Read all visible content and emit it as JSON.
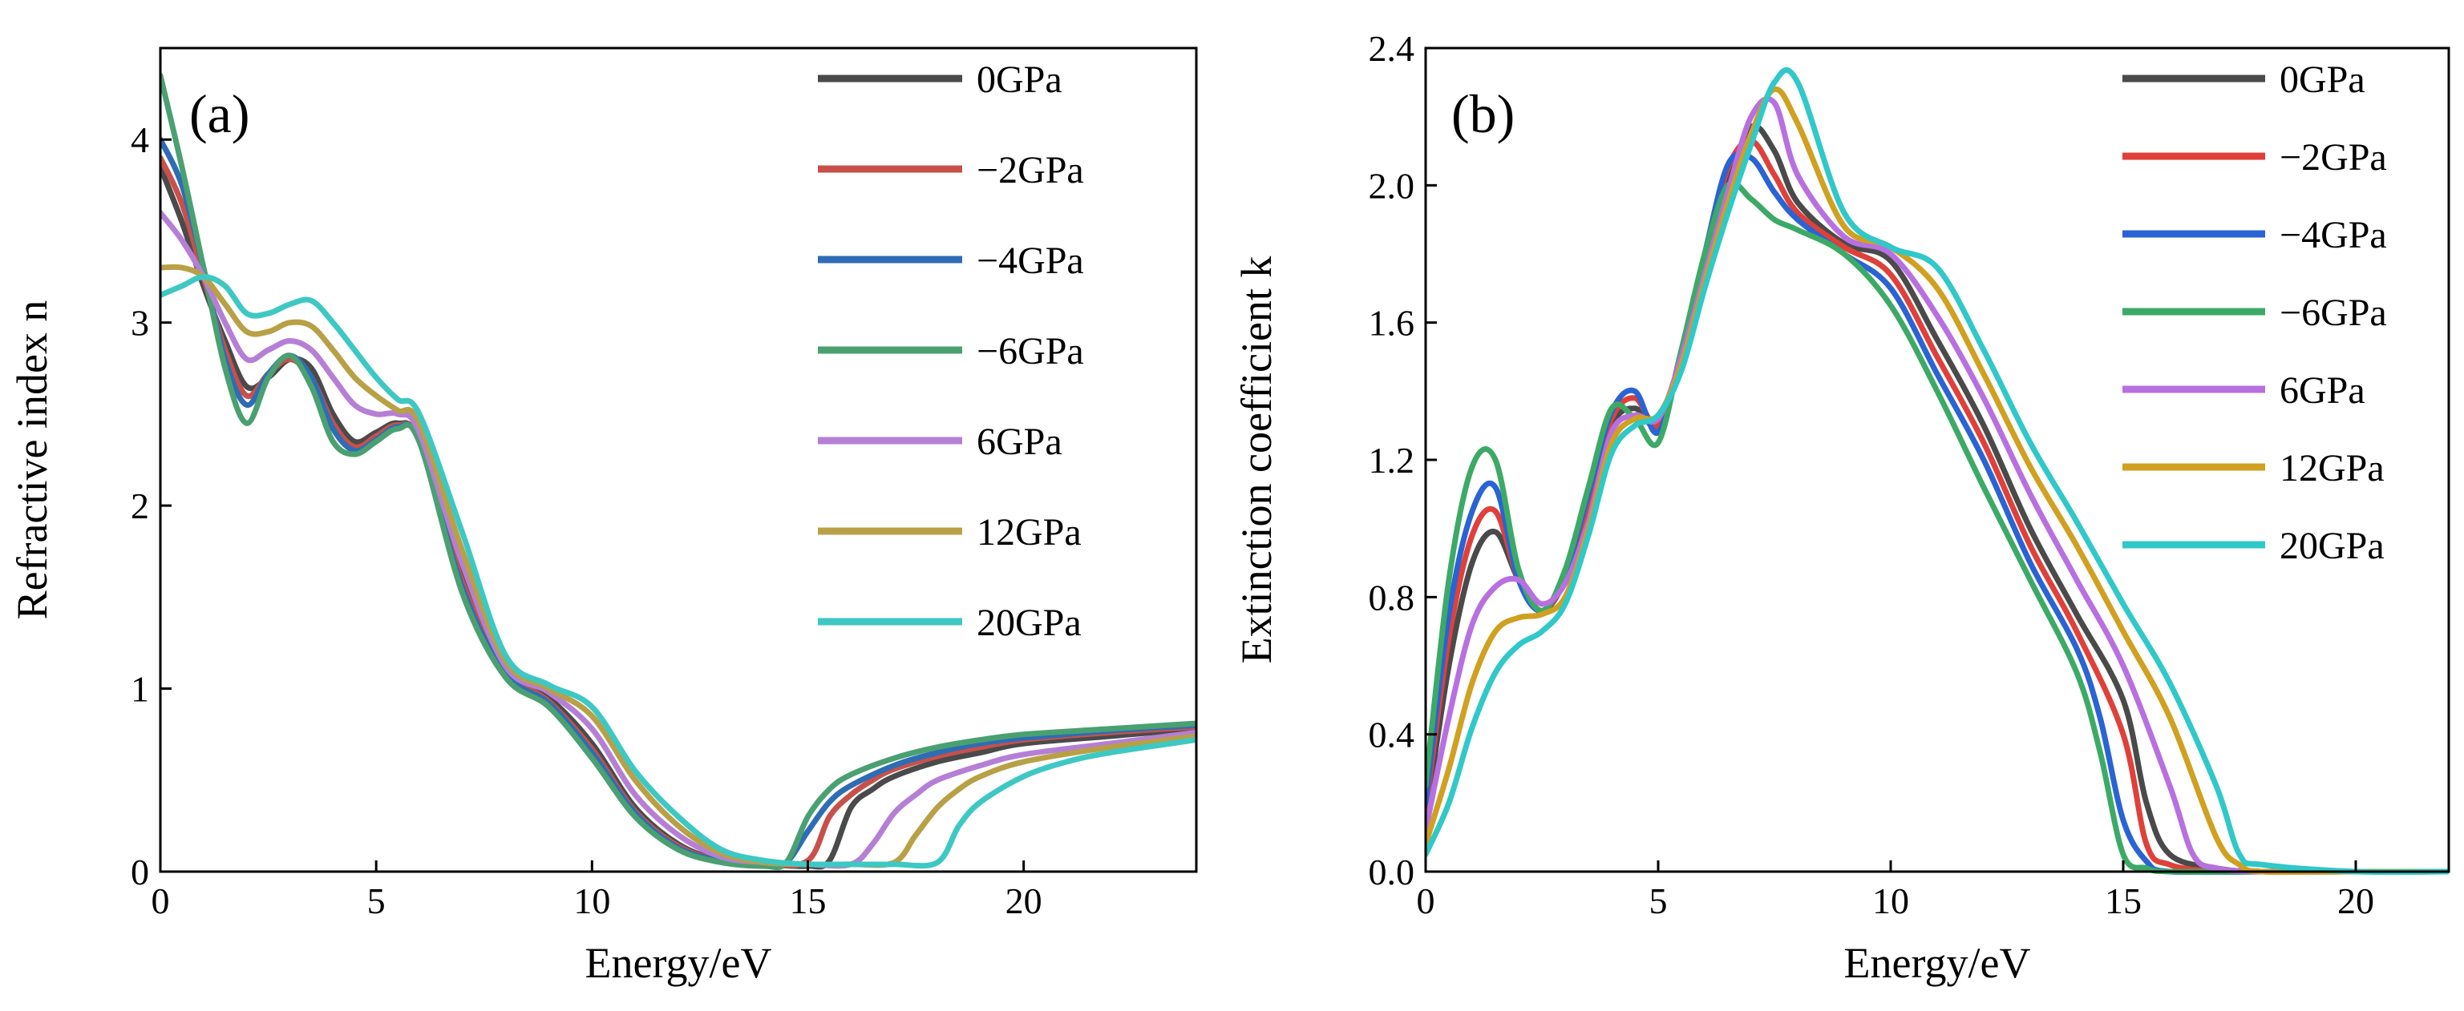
{
  "chart_data": [
    {
      "type": "line",
      "panel_label": "(a)",
      "xlabel": "Energy/eV",
      "ylabel": "Refractive index n",
      "xlim": [
        0,
        24
      ],
      "ylim": [
        0,
        4.5
      ],
      "xticks": [
        0,
        5,
        10,
        15,
        20
      ],
      "yticks": [
        0,
        1,
        2,
        3,
        4
      ],
      "xtick_labels": [
        "0",
        "5",
        "10",
        "15",
        "20"
      ],
      "ytick_labels": [
        "0",
        "1",
        "2",
        "3",
        "4"
      ],
      "legend_position": "top-right",
      "series": [
        {
          "name": "0GPa",
          "color": "#4a4a4a",
          "x": [
            0,
            0.5,
            1,
            1.5,
            2,
            2.5,
            3,
            3.5,
            4,
            4.5,
            5,
            5.5,
            6,
            7,
            8,
            9,
            10,
            11,
            12,
            13,
            14,
            15,
            15.5,
            16,
            16.5,
            17,
            18,
            19,
            20,
            22,
            24
          ],
          "y": [
            3.85,
            3.55,
            3.2,
            2.9,
            2.65,
            2.7,
            2.8,
            2.75,
            2.5,
            2.35,
            2.4,
            2.45,
            2.35,
            1.6,
            1.1,
            0.95,
            0.7,
            0.35,
            0.15,
            0.06,
            0.04,
            0.03,
            0.06,
            0.35,
            0.45,
            0.52,
            0.6,
            0.65,
            0.7,
            0.74,
            0.78
          ]
        },
        {
          "name": "−2GPa",
          "color": "#c8504b",
          "x": [
            0,
            0.5,
            1,
            1.5,
            2,
            2.5,
            3,
            3.5,
            4,
            4.5,
            5,
            5.5,
            6,
            7,
            8,
            9,
            10,
            11,
            12,
            13,
            14,
            15,
            15.5,
            16,
            16.5,
            17,
            18,
            19,
            20,
            22,
            24
          ],
          "y": [
            3.9,
            3.65,
            3.25,
            2.85,
            2.6,
            2.72,
            2.8,
            2.7,
            2.45,
            2.32,
            2.38,
            2.44,
            2.35,
            1.58,
            1.1,
            0.93,
            0.67,
            0.33,
            0.14,
            0.06,
            0.04,
            0.06,
            0.3,
            0.42,
            0.5,
            0.56,
            0.63,
            0.68,
            0.72,
            0.76,
            0.79
          ]
        },
        {
          "name": "−4GPa",
          "color": "#2e6db5",
          "x": [
            0,
            0.5,
            1,
            1.5,
            2,
            2.5,
            3,
            3.5,
            4,
            4.5,
            5,
            5.5,
            6,
            7,
            8,
            9,
            10,
            11,
            12,
            13,
            14,
            14.5,
            15,
            15.5,
            16,
            17,
            18,
            19,
            20,
            22,
            24
          ],
          "y": [
            4.0,
            3.75,
            3.3,
            2.8,
            2.55,
            2.72,
            2.82,
            2.7,
            2.42,
            2.3,
            2.36,
            2.43,
            2.35,
            1.55,
            1.08,
            0.92,
            0.65,
            0.32,
            0.13,
            0.06,
            0.04,
            0.05,
            0.22,
            0.38,
            0.47,
            0.58,
            0.65,
            0.7,
            0.73,
            0.77,
            0.8
          ]
        },
        {
          "name": "−6GPa",
          "color": "#4aa071",
          "x": [
            0,
            0.5,
            1,
            1.5,
            2,
            2.5,
            3,
            3.5,
            4,
            4.5,
            5,
            5.5,
            6,
            7,
            8,
            9,
            10,
            11,
            12,
            13,
            14,
            14.5,
            15,
            15.5,
            16,
            17,
            18,
            19,
            20,
            22,
            24
          ],
          "y": [
            4.35,
            3.85,
            3.3,
            2.75,
            2.45,
            2.7,
            2.82,
            2.65,
            2.35,
            2.28,
            2.35,
            2.42,
            2.35,
            1.52,
            1.06,
            0.9,
            0.62,
            0.3,
            0.12,
            0.05,
            0.03,
            0.05,
            0.3,
            0.45,
            0.53,
            0.62,
            0.68,
            0.72,
            0.75,
            0.78,
            0.81
          ]
        },
        {
          "name": "6GPa",
          "color": "#b57fd6",
          "x": [
            0,
            0.5,
            1,
            1.5,
            2,
            2.5,
            3,
            3.5,
            4,
            4.5,
            5,
            5.5,
            6,
            7,
            8,
            9,
            10,
            11,
            12,
            13,
            14,
            15,
            16,
            16.5,
            17,
            17.5,
            18,
            19,
            20,
            22,
            24
          ],
          "y": [
            3.6,
            3.45,
            3.25,
            3.0,
            2.8,
            2.85,
            2.9,
            2.85,
            2.7,
            2.55,
            2.5,
            2.5,
            2.4,
            1.68,
            1.12,
            0.98,
            0.78,
            0.42,
            0.2,
            0.08,
            0.05,
            0.04,
            0.04,
            0.15,
            0.32,
            0.42,
            0.5,
            0.58,
            0.64,
            0.7,
            0.76
          ]
        },
        {
          "name": "12GPa",
          "color": "#b8a046",
          "x": [
            0,
            0.5,
            1,
            1.5,
            2,
            2.5,
            3,
            3.5,
            4,
            4.5,
            5,
            5.5,
            6,
            7,
            8,
            9,
            10,
            11,
            12,
            13,
            14,
            15,
            16,
            17,
            17.5,
            18,
            18.5,
            19,
            20,
            22,
            24
          ],
          "y": [
            3.3,
            3.3,
            3.25,
            3.1,
            2.95,
            2.95,
            3.0,
            2.98,
            2.85,
            2.7,
            2.6,
            2.52,
            2.45,
            1.75,
            1.15,
            1.0,
            0.85,
            0.5,
            0.25,
            0.1,
            0.05,
            0.04,
            0.04,
            0.05,
            0.2,
            0.35,
            0.45,
            0.52,
            0.6,
            0.68,
            0.74
          ]
        },
        {
          "name": "20GPa",
          "color": "#3ec8c4",
          "x": [
            0,
            0.5,
            1,
            1.5,
            2,
            2.5,
            3,
            3.5,
            4,
            4.5,
            5,
            5.5,
            6,
            7,
            8,
            9,
            10,
            11,
            12,
            13,
            14,
            15,
            16,
            17,
            18,
            18.5,
            19,
            20,
            21,
            22,
            24
          ],
          "y": [
            3.15,
            3.2,
            3.25,
            3.2,
            3.05,
            3.05,
            3.1,
            3.12,
            3.0,
            2.85,
            2.7,
            2.58,
            2.5,
            1.85,
            1.18,
            1.02,
            0.9,
            0.55,
            0.3,
            0.12,
            0.06,
            0.04,
            0.04,
            0.04,
            0.05,
            0.25,
            0.38,
            0.52,
            0.6,
            0.65,
            0.72
          ]
        }
      ]
    },
    {
      "type": "line",
      "panel_label": "(b)",
      "xlabel": "Energy/eV",
      "ylabel": "Extinction coefficient k",
      "xlim": [
        0,
        22
      ],
      "ylim": [
        0,
        2.4
      ],
      "xticks": [
        0,
        5,
        10,
        15,
        20
      ],
      "yticks": [
        0,
        0.4,
        0.8,
        1.2,
        1.6,
        2.0,
        2.4
      ],
      "xtick_labels": [
        "0",
        "5",
        "10",
        "15",
        "20"
      ],
      "ytick_labels": [
        "0.0",
        "0.4",
        "0.8",
        "1.2",
        "1.6",
        "2.0",
        "2.4"
      ],
      "legend_position": "top-right",
      "series": [
        {
          "name": "0GPa",
          "color": "#4a4a4a",
          "x": [
            0,
            0.5,
            1,
            1.5,
            2,
            2.5,
            3,
            3.5,
            4,
            4.5,
            5,
            5.5,
            6,
            6.5,
            7,
            7.5,
            8,
            9,
            10,
            11,
            12,
            13,
            14,
            15,
            15.5,
            16,
            17,
            18,
            20,
            22
          ],
          "y": [
            0.15,
            0.6,
            0.9,
            0.99,
            0.85,
            0.76,
            0.85,
            1.05,
            1.3,
            1.35,
            1.3,
            1.5,
            1.75,
            2.0,
            2.17,
            2.1,
            1.95,
            1.83,
            1.78,
            1.55,
            1.3,
            1.0,
            0.75,
            0.5,
            0.2,
            0.05,
            0.01,
            0.0,
            0.0,
            0.0
          ]
        },
        {
          "name": "−2GPa",
          "color": "#e0403a",
          "x": [
            0,
            0.5,
            1,
            1.5,
            2,
            2.5,
            3,
            3.5,
            4,
            4.5,
            5,
            5.5,
            6,
            6.5,
            7,
            7.5,
            8,
            9,
            10,
            11,
            12,
            13,
            14,
            15,
            15.5,
            16,
            17,
            18,
            20,
            22
          ],
          "y": [
            0.18,
            0.68,
            0.98,
            1.05,
            0.85,
            0.76,
            0.86,
            1.08,
            1.32,
            1.38,
            1.3,
            1.5,
            1.78,
            2.05,
            2.13,
            2.03,
            1.92,
            1.82,
            1.74,
            1.5,
            1.25,
            0.95,
            0.7,
            0.4,
            0.08,
            0.02,
            0.0,
            0.0,
            0.0,
            0.0
          ]
        },
        {
          "name": "−4GPa",
          "color": "#2a63d4",
          "x": [
            0,
            0.5,
            1,
            1.5,
            2,
            2.5,
            3,
            3.5,
            4,
            4.5,
            5,
            5.5,
            6,
            6.5,
            7,
            7.5,
            8,
            9,
            10,
            11,
            12,
            13,
            14,
            14.5,
            15,
            15.5,
            16,
            18,
            20,
            22
          ],
          "y": [
            0.2,
            0.75,
            1.05,
            1.12,
            0.85,
            0.76,
            0.87,
            1.1,
            1.34,
            1.4,
            1.28,
            1.52,
            1.8,
            2.06,
            2.08,
            1.98,
            1.9,
            1.8,
            1.7,
            1.45,
            1.2,
            0.9,
            0.65,
            0.45,
            0.15,
            0.03,
            0.0,
            0.0,
            0.0,
            0.0
          ]
        },
        {
          "name": "−6GPa",
          "color": "#3caa66",
          "x": [
            0,
            0.5,
            1,
            1.5,
            2,
            2.5,
            3,
            3.5,
            4,
            4.5,
            5,
            5.5,
            6,
            6.5,
            7,
            7.5,
            8,
            9,
            10,
            11,
            12,
            13,
            14,
            14.5,
            15,
            15.5,
            16,
            18,
            20,
            22
          ],
          "y": [
            0.25,
            0.85,
            1.18,
            1.2,
            0.88,
            0.76,
            0.88,
            1.12,
            1.35,
            1.32,
            1.25,
            1.52,
            1.8,
            2.0,
            1.96,
            1.9,
            1.87,
            1.8,
            1.65,
            1.4,
            1.12,
            0.85,
            0.58,
            0.35,
            0.05,
            0.01,
            0.0,
            0.0,
            0.0,
            0.0
          ]
        },
        {
          "name": "6GPa",
          "color": "#b870e0",
          "x": [
            0,
            0.5,
            1,
            1.5,
            2,
            2.5,
            3,
            3.5,
            4,
            4.5,
            5,
            5.5,
            6,
            6.5,
            7,
            7.5,
            8,
            9,
            10,
            11,
            12,
            13,
            14,
            15,
            16,
            16.5,
            17,
            18,
            20,
            22
          ],
          "y": [
            0.12,
            0.45,
            0.72,
            0.83,
            0.85,
            0.78,
            0.84,
            1.02,
            1.28,
            1.33,
            1.32,
            1.5,
            1.74,
            1.98,
            2.2,
            2.24,
            2.03,
            1.85,
            1.8,
            1.62,
            1.38,
            1.1,
            0.85,
            0.6,
            0.25,
            0.05,
            0.01,
            0.0,
            0.0,
            0.0
          ]
        },
        {
          "name": "12GPa",
          "color": "#d0a020",
          "x": [
            0,
            0.5,
            1,
            1.5,
            2,
            2.5,
            3,
            3.5,
            4,
            4.5,
            5,
            5.5,
            6,
            6.5,
            7,
            7.5,
            8,
            9,
            10,
            11,
            12,
            13,
            14,
            15,
            16,
            17,
            17.5,
            18,
            20,
            22
          ],
          "y": [
            0.08,
            0.3,
            0.55,
            0.7,
            0.74,
            0.75,
            0.8,
            1.0,
            1.25,
            1.32,
            1.33,
            1.48,
            1.72,
            1.95,
            2.15,
            2.28,
            2.18,
            1.88,
            1.82,
            1.7,
            1.45,
            1.18,
            0.95,
            0.7,
            0.45,
            0.1,
            0.02,
            0.0,
            0.0,
            0.0
          ]
        },
        {
          "name": "20GPa",
          "color": "#30c8c8",
          "x": [
            0,
            0.5,
            1,
            1.5,
            2,
            2.5,
            3,
            3.5,
            4,
            4.5,
            5,
            5.5,
            6,
            6.5,
            7,
            7.5,
            8,
            9,
            10,
            11,
            12,
            13,
            14,
            15,
            16,
            17,
            17.5,
            18,
            20,
            22
          ],
          "y": [
            0.05,
            0.2,
            0.42,
            0.58,
            0.66,
            0.7,
            0.78,
            0.98,
            1.22,
            1.3,
            1.33,
            1.46,
            1.7,
            1.92,
            2.12,
            2.3,
            2.3,
            1.92,
            1.82,
            1.76,
            1.52,
            1.25,
            1.02,
            0.78,
            0.55,
            0.25,
            0.05,
            0.02,
            0.0,
            0.0
          ]
        }
      ]
    }
  ]
}
